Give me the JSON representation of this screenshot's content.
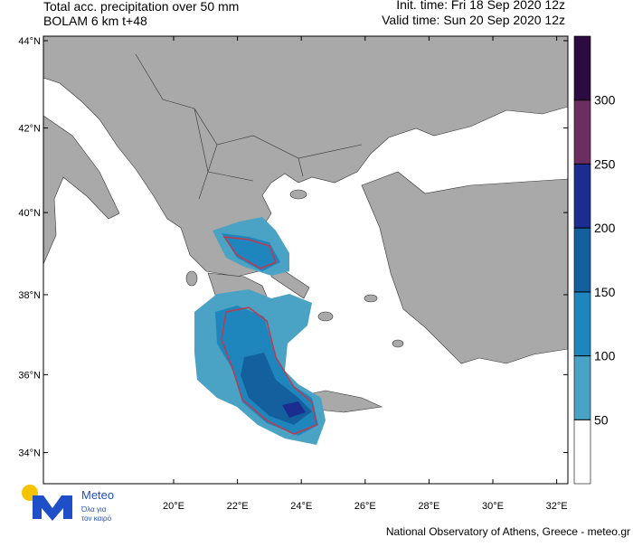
{
  "header": {
    "title_lines": [
      "Total acc. precipitation over 50 mm",
      "BOLAM 6 km t+48"
    ],
    "init_time": "Init. time: Fri 18 Sep 2020 12z",
    "valid_time": "Valid time: Sun 20 Sep 2020 12z"
  },
  "map": {
    "lat_ticks": [
      {
        "value": 44,
        "label": "44°N"
      },
      {
        "value": 42,
        "label": "42°N"
      },
      {
        "value": 40,
        "label": "40°N"
      },
      {
        "value": 38,
        "label": "38°N"
      },
      {
        "value": 36,
        "label": "36°N"
      },
      {
        "value": 34,
        "label": "34°N"
      }
    ],
    "lon_ticks": [
      {
        "value": 20,
        "label": "20°E"
      },
      {
        "value": 22,
        "label": "22°E"
      },
      {
        "value": 24,
        "label": "24°E"
      },
      {
        "value": 26,
        "label": "26°E"
      },
      {
        "value": 28,
        "label": "28°E"
      },
      {
        "value": 30,
        "label": "30°E"
      },
      {
        "value": 32,
        "label": "32°E"
      }
    ]
  },
  "colorbar": {
    "levels": [
      50,
      100,
      150,
      200,
      250,
      300
    ],
    "colors": [
      "#ffffff",
      "#4aa3c4",
      "#1f86bd",
      "#14609f",
      "#1b2e90",
      "#6a2e60",
      "#2c0c40"
    ]
  },
  "logo": {
    "name": "Meteo",
    "tagline_lines": [
      "Όλα για",
      "τον καιρό"
    ]
  },
  "footer": "National Observatory of Athens, Greece - meteo.gr"
}
